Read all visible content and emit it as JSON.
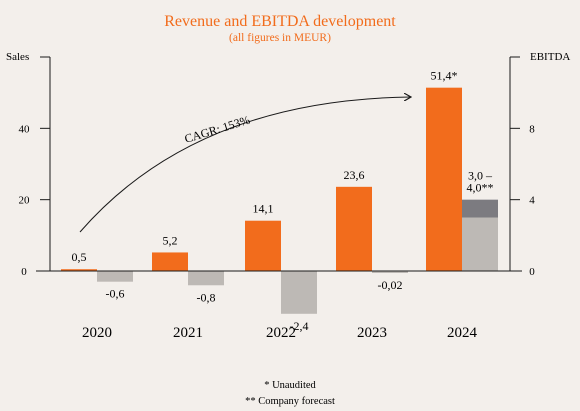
{
  "colors": {
    "sales": "#f26c1c",
    "ebitda": "#bdb9b5",
    "ebitda_forecast": "#7c7b80",
    "title": "#f26c1c",
    "axis": "#1a1a1a",
    "background": "#f3efeb"
  },
  "chart_data": {
    "type": "bar",
    "title": "Revenue and EBITDA development",
    "subtitle": "(all figures in MEUR)",
    "categories": [
      "2020",
      "2021",
      "2022",
      "2023",
      "2024"
    ],
    "y_left": {
      "label": "Sales",
      "ticks": [
        "0",
        "20",
        "40"
      ],
      "ylim": [
        -9.6,
        60
      ]
    },
    "y_right": {
      "label": "EBITDA",
      "ticks": [
        "0",
        "4",
        "8"
      ],
      "ylim": [
        -1.92,
        12
      ]
    },
    "series": [
      {
        "axis": "left",
        "values": [
          0.5,
          5.2,
          14.1,
          23.6,
          51.4
        ],
        "labels": [
          "0,5",
          "5,2",
          "14,1",
          "23,6",
          "51,4*"
        ]
      },
      {
        "axis": "right",
        "values": [
          -0.6,
          -0.8,
          -2.4,
          -0.02,
          3.0
        ],
        "range_high": [
          null,
          null,
          null,
          null,
          4.0
        ],
        "labels": [
          "-0,6",
          "-0,8",
          "-2,4",
          "-0,02",
          "3,0 –\n4,0**"
        ]
      }
    ],
    "annotation": "CAGR: 153%",
    "footnotes": [
      "* Unaudited",
      "** Company forecast"
    ],
    "grid": false
  }
}
